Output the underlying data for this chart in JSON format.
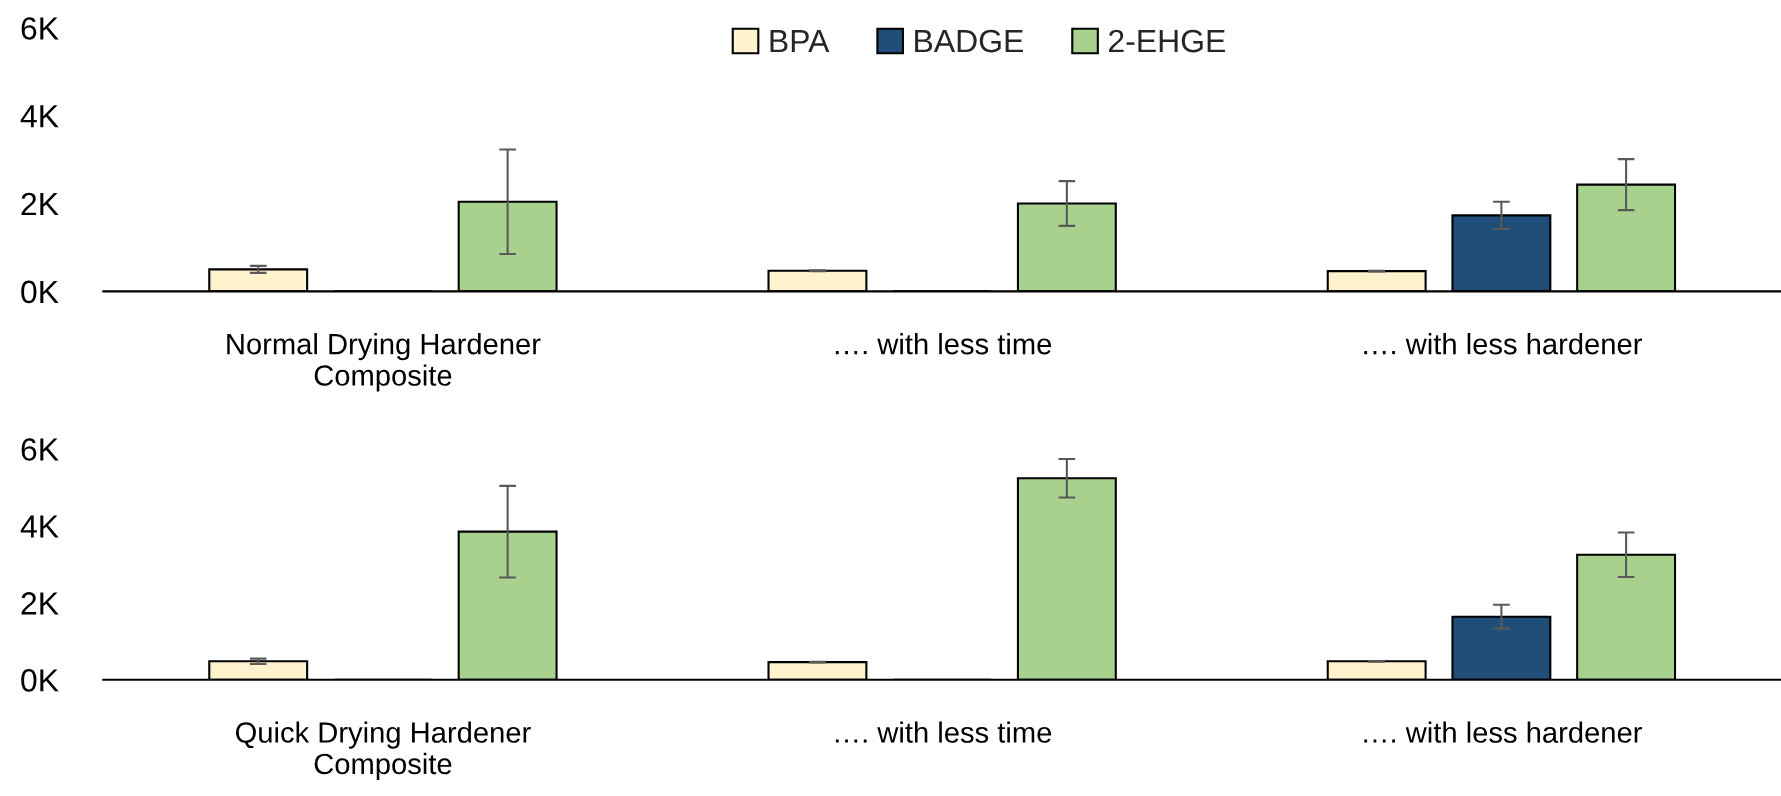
{
  "chart_data": [
    {
      "type": "bar",
      "categories": [
        "Normal Drying Hardener\nComposite",
        "…. with less time",
        "…. with less hardener"
      ],
      "series": [
        {
          "name": "BPA",
          "color": "#fff2cc",
          "values": [
            500,
            470,
            460
          ],
          "errors": [
            80,
            10,
            10
          ]
        },
        {
          "name": "BADGE",
          "color": "#1f4e79",
          "values": [
            0,
            0,
            1730
          ],
          "errors": [
            null,
            null,
            310
          ]
        },
        {
          "name": "2-EHGE",
          "color": "#a9d18e",
          "values": [
            2040,
            2000,
            2430
          ],
          "errors": [
            1190,
            510,
            580
          ]
        }
      ],
      "ylim": [
        0,
        6000
      ],
      "yticks": [
        {
          "value": 0,
          "label": "0K"
        },
        {
          "value": 2000,
          "label": "2K"
        },
        {
          "value": 4000,
          "label": "4K"
        },
        {
          "value": 6000,
          "label": "6K"
        }
      ],
      "legend": "top"
    },
    {
      "type": "bar",
      "categories": [
        "Quick Drying Hardener\nComposite",
        "…. with less time",
        "…. with less hardener"
      ],
      "series": [
        {
          "name": "BPA",
          "color": "#fff2cc",
          "values": [
            480,
            460,
            480
          ],
          "errors": [
            70,
            10,
            10
          ]
        },
        {
          "name": "BADGE",
          "color": "#1f4e79",
          "values": [
            0,
            0,
            1640
          ],
          "errors": [
            null,
            null,
            310
          ]
        },
        {
          "name": "2-EHGE",
          "color": "#a9d18e",
          "values": [
            3850,
            5240,
            3250
          ],
          "errors": [
            1190,
            500,
            580
          ]
        }
      ],
      "ylim": [
        0,
        6000
      ],
      "yticks": [
        {
          "value": 0,
          "label": "0K"
        },
        {
          "value": 2000,
          "label": "2K"
        },
        {
          "value": 4000,
          "label": "4K"
        },
        {
          "value": 6000,
          "label": "6K"
        }
      ]
    }
  ]
}
